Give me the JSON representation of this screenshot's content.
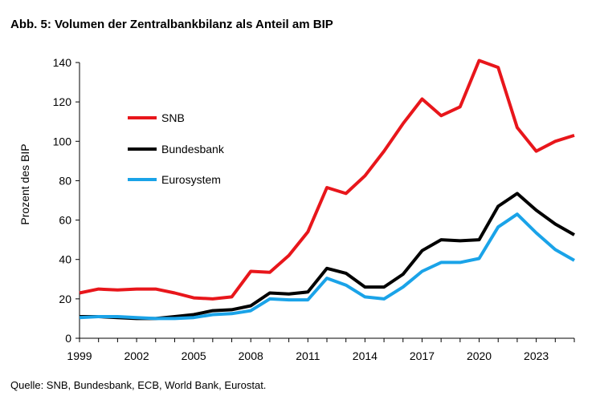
{
  "title": "Abb. 5: Volumen der Zentralbankbilanz als Anteil am BIP",
  "source": "Quelle: SNB, Bundesbank, ECB, World Bank, Eurostat.",
  "chart_data": {
    "type": "line",
    "ylabel": "Prozent des BIP",
    "ylim": [
      0,
      140
    ],
    "yticks": [
      "0",
      "20",
      "40",
      "60",
      "80",
      "100",
      "120",
      "140"
    ],
    "xlim": [
      1999,
      2025
    ],
    "xticks": [
      "1999",
      "2002",
      "2005",
      "2008",
      "2011",
      "2014",
      "2017",
      "2020",
      "2023"
    ],
    "grid": false,
    "legend_position": "top-left",
    "x": [
      1999,
      2000,
      2001,
      2002,
      2003,
      2004,
      2005,
      2006,
      2007,
      2008,
      2009,
      2010,
      2011,
      2012,
      2013,
      2014,
      2015,
      2016,
      2017,
      2018,
      2019,
      2020,
      2021,
      2022,
      2023,
      2024,
      2025
    ],
    "series": [
      {
        "name": "SNB",
        "color": "#e8161b",
        "values": [
          23,
          25,
          24.5,
          25,
          25,
          23,
          20.5,
          20,
          21,
          34,
          33.5,
          42,
          54,
          76.5,
          73.5,
          82.5,
          95,
          109,
          121.5,
          113,
          117.5,
          141,
          137.5,
          107,
          95,
          100,
          103
        ]
      },
      {
        "name": "Bundesbank",
        "color": "#000000",
        "values": [
          11,
          11,
          10.5,
          10,
          10,
          11,
          12,
          14,
          14.5,
          16.5,
          23,
          22.5,
          23.5,
          35.5,
          33,
          26,
          26,
          32.5,
          44.5,
          50,
          49.5,
          50,
          67,
          73.5,
          65,
          58,
          52.5
        ]
      },
      {
        "name": "Eurosystem",
        "color": "#1aa3e8",
        "values": [
          10.5,
          11,
          11,
          10.5,
          10,
          10,
          10.5,
          12,
          12.5,
          14,
          20,
          19.5,
          19.5,
          30.5,
          27,
          21,
          20,
          26,
          34,
          38.5,
          38.5,
          40.5,
          56.5,
          63,
          53.5,
          45,
          39.5
        ]
      }
    ]
  }
}
